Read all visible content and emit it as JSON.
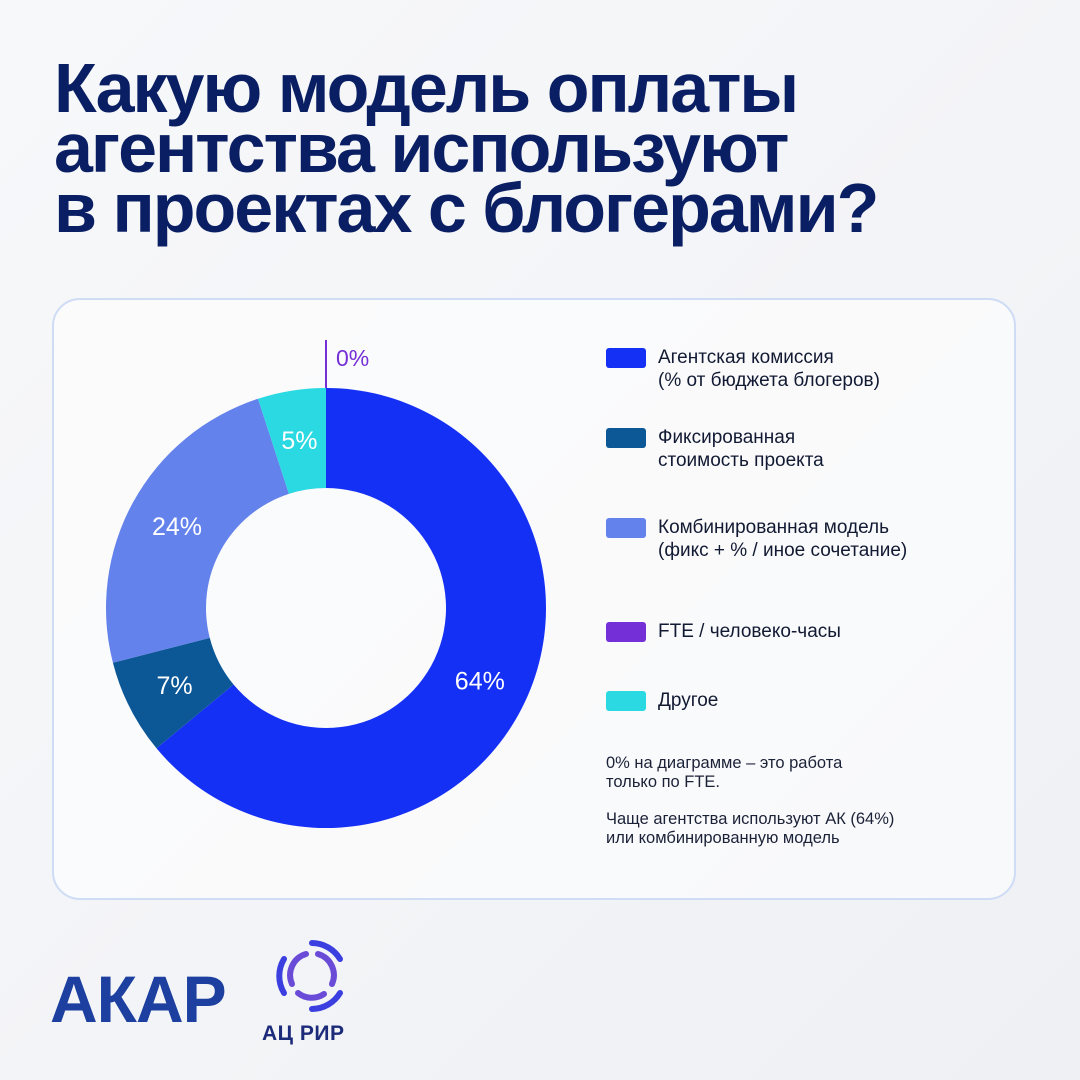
{
  "title": {
    "line1": "Какую модель оплаты",
    "line2": "агентства используют",
    "line3": "в проектах с блогерами?"
  },
  "chart_data": {
    "type": "pie",
    "donut": true,
    "categories": [
      "Агентская комиссия\n(% от бюджета блогеров)",
      "Фиксированная\nстоимость проекта",
      "Комбинированная модель\n(фикс + % / иное сочетание)",
      "FTE / человеко-часы",
      "Другое"
    ],
    "values": [
      64,
      7,
      24,
      0,
      5
    ],
    "value_labels": [
      "64%",
      "7%",
      "24%",
      "0%",
      "5%"
    ],
    "colors": [
      "#1530f5",
      "#0c5897",
      "#6482ec",
      "#7430d6",
      "#2ad9e1"
    ],
    "legend_position": "right"
  },
  "notes": {
    "note1": "0% на диаграмме – это работа\nтолько по FTE.",
    "note2": "Чаще агентства используют АК (64%)\nили комбинированную модель"
  },
  "logos": {
    "akar": "АКАР",
    "air": "АЦ РИР"
  }
}
